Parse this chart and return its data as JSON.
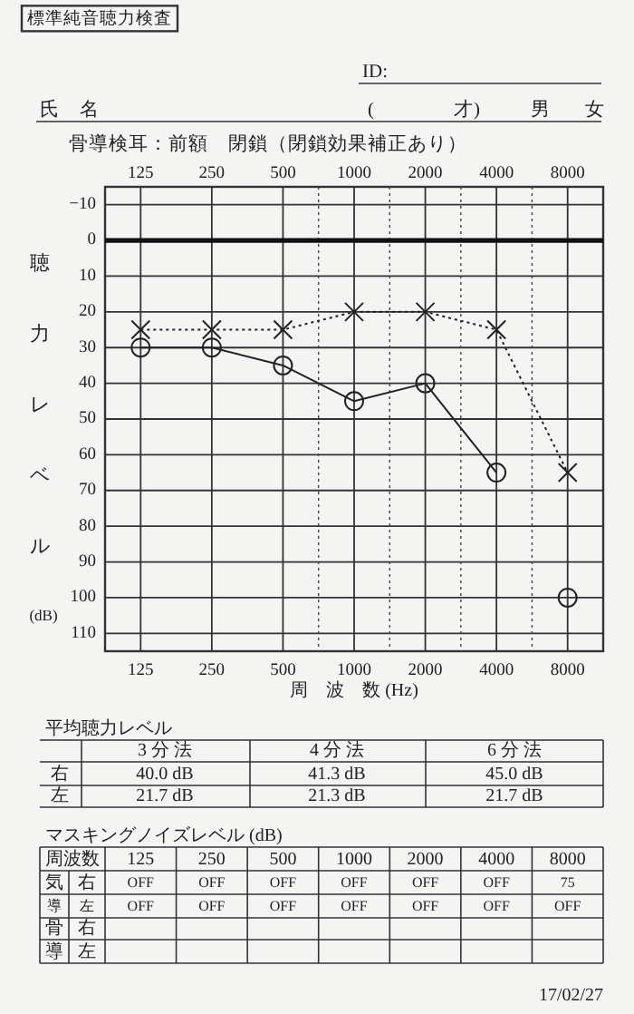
{
  "chart_data": {
    "type": "line",
    "title": "標準純音聴力検査",
    "xlabel": "周　波　数 (Hz)",
    "ylabel": "聴力レベル (dB)",
    "categories": [
      "125",
      "250",
      "500",
      "1000",
      "2000",
      "4000",
      "8000"
    ],
    "series": [
      {
        "color": "#222222",
        "marker": "circle",
        "line_style": "solid",
        "values": [
          30,
          30,
          35,
          45,
          40,
          65,
          null
        ]
      },
      {
        "type": "scatter",
        "color": "#222222",
        "marker": "circle",
        "values": [
          null,
          null,
          null,
          null,
          null,
          null,
          100
        ]
      },
      {
        "color": "#222222",
        "marker": "cross",
        "line_style": "dotted",
        "values": [
          25,
          25,
          25,
          20,
          20,
          25,
          65
        ]
      }
    ],
    "ylim": [
      115,
      -15
    ],
    "yticks": [
      -10,
      0,
      10,
      20,
      30,
      40,
      50,
      60,
      70,
      80,
      90,
      100,
      110
    ],
    "grid": true,
    "ref_lines": [
      {
        "axis": "y",
        "value": 0,
        "color": "#111111"
      }
    ],
    "annotations": [
      "ID:",
      "氏　名",
      "(　　　　才)",
      "男",
      "女",
      "骨導検耳：前額　閉鎖（閉鎖効果補正あり）",
      "平均聴力レベル",
      "3 分 法",
      "4 分 法",
      "6 分 法",
      "右",
      "40.0 dB",
      "41.3 dB",
      "45.0 dB",
      "左",
      "21.7 dB",
      "21.3 dB",
      "21.7 dB",
      "マスキングノイズレベル (dB)",
      "周波数",
      "125",
      "250",
      "500",
      "1000",
      "2000",
      "4000",
      "8000",
      "気",
      "右",
      "OFF",
      "OFF",
      "OFF",
      "OFF",
      "OFF",
      "OFF",
      "75",
      "導",
      "左",
      "OFF",
      "OFF",
      "OFF",
      "OFF",
      "OFF",
      "OFF",
      "OFF",
      "骨",
      "右",
      "導",
      "左",
      "17/02/27"
    ]
  }
}
